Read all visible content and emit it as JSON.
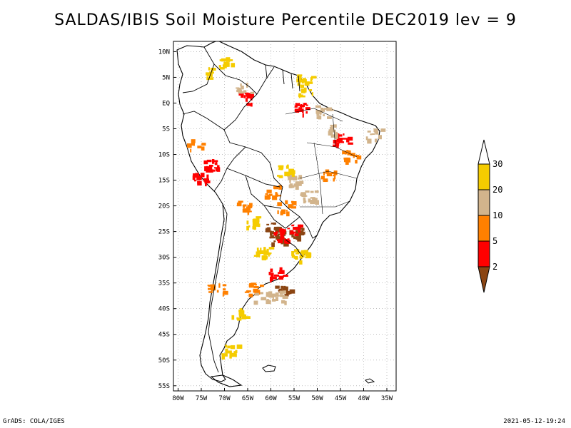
{
  "title": "SALDAS/IBIS Soil Moisture Percentile DEC2019 lev = 9",
  "footer": {
    "left": "GrADS: COLA/IGES",
    "right": "2021-05-12-19:24"
  },
  "lat_ticks": [
    "10N",
    "5N",
    "EQ",
    "5S",
    "10S",
    "15S",
    "20S",
    "25S",
    "30S",
    "35S",
    "40S",
    "45S",
    "50S",
    "55S"
  ],
  "lon_ticks": [
    "80W",
    "75W",
    "70W",
    "65W",
    "60W",
    "55W",
    "50W",
    "45W",
    "40W",
    "35W"
  ],
  "colorbar": {
    "labels": [
      "30",
      "20",
      "10",
      "5",
      "2"
    ],
    "colors": [
      "#ffffff",
      "#f5cc00",
      "#d2b48c",
      "#ff8000",
      "#ff0000",
      "#8b4513"
    ]
  },
  "chart_data": {
    "type": "heatmap",
    "title": "SALDAS/IBIS Soil Moisture Percentile DEC2019 lev = 9",
    "x": {
      "range": [
        -81,
        -33
      ],
      "ticks": [
        -80,
        -75,
        -70,
        -65,
        -60,
        -55,
        -50,
        -45,
        -40,
        -35
      ]
    },
    "y": {
      "range": [
        -56,
        12
      ],
      "ticks": [
        10,
        5,
        0,
        -5,
        -10,
        -15,
        -20,
        -25,
        -30,
        -35,
        -40,
        -45,
        -50,
        -55
      ]
    },
    "grid": true,
    "legend": "right",
    "bins": [
      {
        "label": "<2",
        "color": "#8b4513"
      },
      {
        "label": "2-5",
        "color": "#ff0000"
      },
      {
        "label": "5-10",
        "color": "#ff8000"
      },
      {
        "label": "10-20",
        "color": "#d2b48c"
      },
      {
        "label": "20-30",
        "color": "#f5cc00"
      },
      {
        "label": ">30",
        "color": "#ffffff"
      }
    ],
    "patches": [
      {
        "lon": -58.8,
        "lat": -25.0,
        "bin": "<2"
      },
      {
        "lon": -58.5,
        "lat": -26.0,
        "bin": "<2"
      },
      {
        "lon": -59.5,
        "lat": -24.2,
        "bin": "<2"
      },
      {
        "lon": -54.5,
        "lat": -25.0,
        "bin": "<2"
      },
      {
        "lon": -57.5,
        "lat": -36.5,
        "bin": "<2"
      },
      {
        "lon": -58.0,
        "lat": -25.5,
        "bin": "2-5"
      },
      {
        "lon": -55.0,
        "lat": -24.5,
        "bin": "2-5"
      },
      {
        "lon": -45.0,
        "lat": -7.0,
        "bin": "2-5"
      },
      {
        "lon": -75.2,
        "lat": -14.5,
        "bin": "2-5"
      },
      {
        "lon": -73.0,
        "lat": -12.0,
        "bin": "2-5"
      },
      {
        "lon": -59.0,
        "lat": -33.0,
        "bin": "2-5"
      },
      {
        "lon": -54.0,
        "lat": -1.0,
        "bin": "2-5"
      },
      {
        "lon": -66.0,
        "lat": 1.0,
        "bin": "2-5"
      },
      {
        "lon": -60.0,
        "lat": -17.0,
        "bin": "5-10"
      },
      {
        "lon": -57.0,
        "lat": -20.0,
        "bin": "5-10"
      },
      {
        "lon": -48.0,
        "lat": -14.0,
        "bin": "5-10"
      },
      {
        "lon": -43.0,
        "lat": -10.0,
        "bin": "5-10"
      },
      {
        "lon": -66.0,
        "lat": -20.0,
        "bin": "5-10"
      },
      {
        "lon": -64.0,
        "lat": -36.0,
        "bin": "5-10"
      },
      {
        "lon": -72.0,
        "lat": -36.0,
        "bin": "5-10"
      },
      {
        "lon": -76.5,
        "lat": -8.0,
        "bin": "5-10"
      },
      {
        "lon": -49.0,
        "lat": -1.5,
        "bin": "10-20"
      },
      {
        "lon": -46.5,
        "lat": -5.0,
        "bin": "10-20"
      },
      {
        "lon": -38.0,
        "lat": -6.0,
        "bin": "10-20"
      },
      {
        "lon": -55.0,
        "lat": -15.0,
        "bin": "10-20"
      },
      {
        "lon": -58.5,
        "lat": -37.5,
        "bin": "10-20"
      },
      {
        "lon": -62.0,
        "lat": -37.5,
        "bin": "10-20"
      },
      {
        "lon": -52.0,
        "lat": -18.0,
        "bin": "10-20"
      },
      {
        "lon": -66.0,
        "lat": 3.0,
        "bin": "10-20"
      },
      {
        "lon": -53.0,
        "lat": 4.8,
        "bin": "20-30"
      },
      {
        "lon": -52.5,
        "lat": 2.5,
        "bin": "20-30"
      },
      {
        "lon": -67.0,
        "lat": -41.0,
        "bin": "20-30"
      },
      {
        "lon": -69.0,
        "lat": -48.0,
        "bin": "20-30"
      },
      {
        "lon": -62.0,
        "lat": -29.0,
        "bin": "20-30"
      },
      {
        "lon": -54.0,
        "lat": -29.5,
        "bin": "20-30"
      },
      {
        "lon": -64.0,
        "lat": -23.0,
        "bin": "20-30"
      },
      {
        "lon": -57.0,
        "lat": -13.0,
        "bin": "20-30"
      },
      {
        "lon": -70.0,
        "lat": 8.0,
        "bin": "20-30"
      },
      {
        "lon": -74.0,
        "lat": 6.0,
        "bin": "20-30"
      }
    ]
  }
}
